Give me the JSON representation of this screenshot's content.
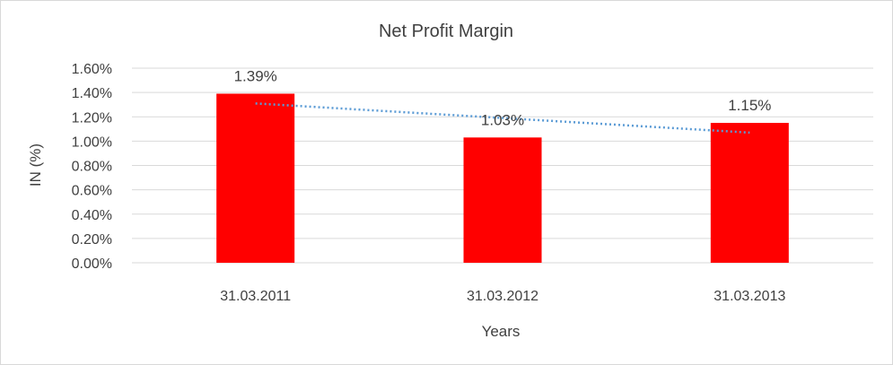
{
  "chart_data": {
    "type": "bar",
    "title": "Net Profit Margin",
    "xlabel": "Years",
    "ylabel": "IN (%)",
    "categories": [
      "31.03.2011",
      "31.03.2012",
      "31.03.2013"
    ],
    "values": [
      1.39,
      1.03,
      1.15
    ],
    "data_labels": [
      "1.39%",
      "1.03%",
      "1.15%"
    ],
    "ylim": [
      0,
      1.6
    ],
    "yticks": [
      0,
      0.2,
      0.4,
      0.6,
      0.8,
      1.0,
      1.2,
      1.4,
      1.6
    ],
    "ytick_labels": [
      "0.00%",
      "0.20%",
      "0.40%",
      "0.60%",
      "0.80%",
      "1.00%",
      "1.20%",
      "1.40%",
      "1.60%"
    ],
    "grid": true,
    "legend": "none",
    "bar_color": "#ff0000",
    "trendline": {
      "type": "linear",
      "color": "#5b9bd5",
      "style": "dotted"
    }
  }
}
